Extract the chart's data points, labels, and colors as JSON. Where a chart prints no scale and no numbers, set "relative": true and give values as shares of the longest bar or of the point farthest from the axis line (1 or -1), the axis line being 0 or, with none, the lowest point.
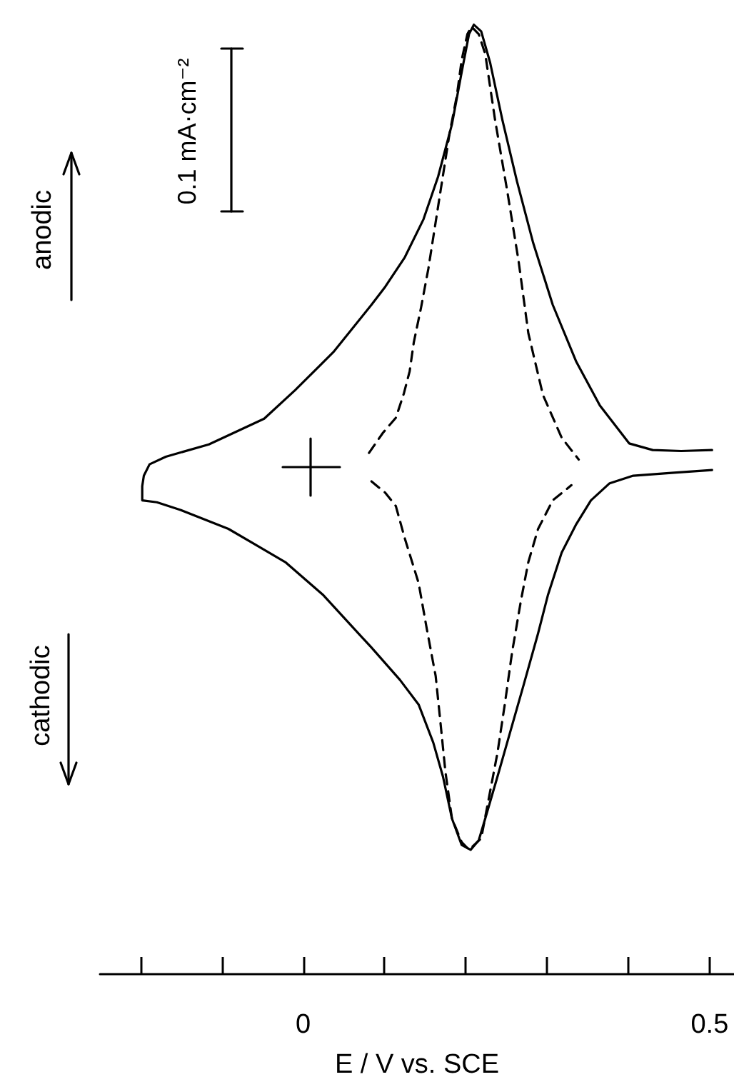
{
  "chart_data": {
    "type": "line",
    "xlabel": "E / V vs. SCE",
    "relative": true,
    "marker": "none",
    "xlim": [
      -0.25,
      0.53
    ],
    "xticks": [
      {
        "value": -0.2,
        "label": null
      },
      {
        "value": -0.1,
        "label": null
      },
      0,
      {
        "value": 0.1,
        "label": null
      },
      {
        "value": 0.2,
        "label": null
      },
      {
        "value": 0.3,
        "label": null
      },
      {
        "value": 0.4,
        "label": null
      },
      0.5
    ],
    "annotations": [
      "anodic",
      "cathodic",
      "0.1 mA·cm⁻²"
    ],
    "series": [
      {
        "color": "#000000",
        "line_style": "solid",
        "x": [
          0.503,
          0.465,
          0.43,
          0.401,
          0.365,
          0.336,
          0.307,
          0.283,
          0.263,
          0.245,
          0.23,
          0.219,
          0.21,
          0.204,
          0.195,
          0.183,
          0.166,
          0.148,
          0.125,
          0.101,
          0.084,
          0.037,
          -0.01,
          -0.048,
          -0.116,
          -0.169,
          -0.189,
          -0.196,
          -0.198,
          -0.198,
          -0.18,
          -0.151,
          -0.092,
          -0.022,
          0.025,
          0.084,
          0.119,
          0.142,
          0.16,
          0.172,
          0.183,
          0.195,
          0.206,
          0.216,
          0.224,
          0.239,
          0.254,
          0.271,
          0.289,
          0.301,
          0.318,
          0.336,
          0.354,
          0.377,
          0.406,
          0.453,
          0.503
        ],
        "values": [
          0.552,
          0.551,
          0.552,
          0.559,
          0.599,
          0.645,
          0.705,
          0.77,
          0.835,
          0.9,
          0.96,
          0.993,
          1,
          0.99,
          0.95,
          0.895,
          0.84,
          0.795,
          0.755,
          0.724,
          0.705,
          0.655,
          0.615,
          0.585,
          0.558,
          0.545,
          0.537,
          0.525,
          0.514,
          0.499,
          0.497,
          0.489,
          0.469,
          0.434,
          0.399,
          0.344,
          0.31,
          0.284,
          0.244,
          0.208,
          0.164,
          0.136,
          0.131,
          0.141,
          0.164,
          0.208,
          0.253,
          0.304,
          0.359,
          0.399,
          0.444,
          0.474,
          0.499,
          0.517,
          0.525,
          0.528,
          0.531
        ]
      },
      {
        "color": "#000000",
        "line_style": "dashed",
        "x": [
          0.081,
          0.098,
          0.114,
          0.124,
          0.131,
          0.136,
          0.145,
          0.154,
          0.169,
          0.18,
          0.189,
          0.195,
          0.202,
          0.207,
          0.216,
          0.224,
          0.236,
          0.251,
          0.265,
          0.277,
          0.295,
          0.318,
          0.339,
          null,
          0.084,
          0.101,
          0.114,
          0.125,
          0.142,
          0.152,
          0.163,
          0.169,
          0.175,
          0.183,
          0.195,
          0.204,
          0.219,
          0.227,
          0.239,
          0.248,
          0.257,
          0.268,
          0.277,
          0.289,
          0.307,
          0.33
        ],
        "values": [
          0.549,
          0.57,
          0.586,
          0.612,
          0.635,
          0.665,
          0.702,
          0.743,
          0.825,
          0.885,
          0.925,
          0.963,
          0.99,
          0.998,
          0.99,
          0.969,
          0.9,
          0.825,
          0.751,
          0.675,
          0.61,
          0.565,
          0.542,
          null,
          0.519,
          0.507,
          0.493,
          0.459,
          0.412,
          0.364,
          0.314,
          0.264,
          0.213,
          0.164,
          0.139,
          0.131,
          0.143,
          0.179,
          0.233,
          0.284,
          0.339,
          0.394,
          0.434,
          0.469,
          0.499,
          0.515
        ]
      }
    ]
  }
}
